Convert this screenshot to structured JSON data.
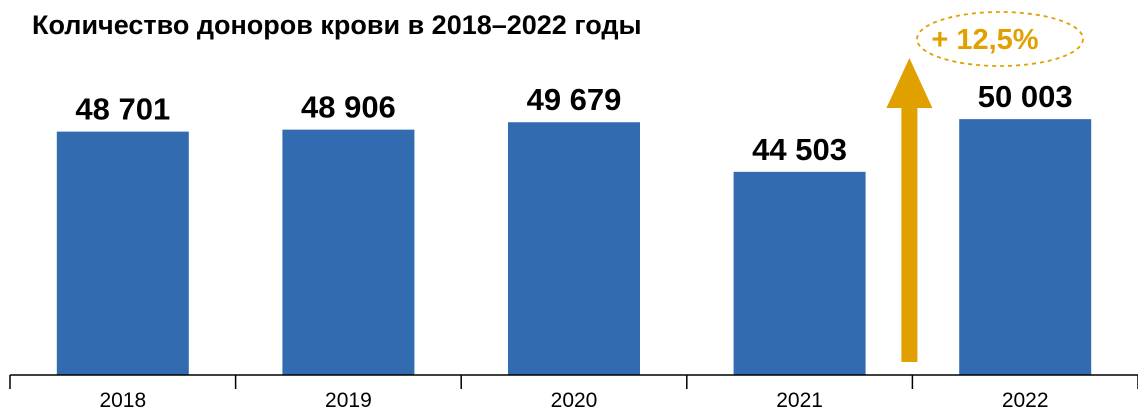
{
  "chart_data": {
    "type": "bar",
    "title": "Количество доноров крови в 2018–2022 годы",
    "categories": [
      "2018",
      "2019",
      "2020",
      "2021",
      "2022"
    ],
    "values": [
      48701,
      48906,
      49679,
      44503,
      50003
    ],
    "value_labels": [
      "48 701",
      "48 906",
      "49 679",
      "44 503",
      "50 003"
    ],
    "bar_color": "#336BB1",
    "ylim": [
      23300,
      52000
    ],
    "grid": false,
    "annotation": {
      "text": "+ 12,5%",
      "from_category": "2021",
      "to_category": "2022",
      "color": "#E0A100"
    }
  }
}
